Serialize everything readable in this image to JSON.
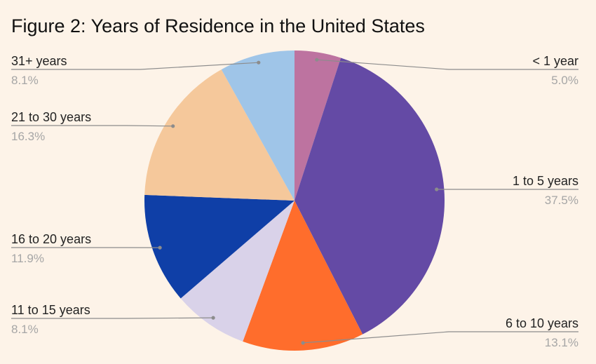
{
  "chart_data": {
    "type": "pie",
    "title": "Figure 2: Years of Residence in the United States",
    "categories": [
      "< 1 year",
      "1 to 5 years",
      "6 to 10 years",
      "11 to 15 years",
      "16 to 20 years",
      "21 to 30 years",
      "31+ years"
    ],
    "values": [
      5.0,
      37.5,
      13.1,
      8.1,
      11.9,
      16.3,
      8.1
    ],
    "value_labels": [
      "5.0%",
      "37.5%",
      "13.1%",
      "8.1%",
      "11.9%",
      "16.3%",
      "8.1%"
    ],
    "colors": [
      "#bd73a0",
      "#644aa5",
      "#ff6d2c",
      "#d9d2e9",
      "#0f3fa7",
      "#f5c89b",
      "#9fc5e8"
    ],
    "start_angle": "12 o'clock",
    "direction": "clockwise",
    "legend": "none (labels on leader lines)"
  }
}
